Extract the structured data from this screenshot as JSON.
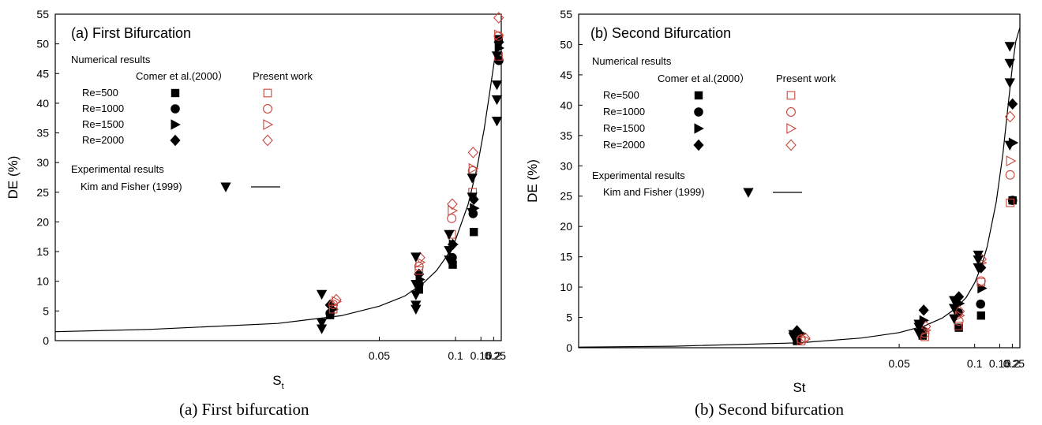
{
  "colors": {
    "black": "#000000",
    "red": "#c8463e"
  },
  "chart_data": [
    {
      "type": "scatter",
      "title": "(a) First Bifurcation",
      "caption": "(a) First bifurcation",
      "ylabel": "DE (%)",
      "xlabel_main": "S",
      "xlabel_sub": "t",
      "x_scale": "reciprocal",
      "xlim": [
        0.016,
        0.25
      ],
      "ylim": [
        0,
        55
      ],
      "x_ticks": [
        "0.05",
        "0.1",
        "0.15",
        "0.2",
        "0.25"
      ],
      "x_tick_values": [
        0.05,
        0.1,
        0.15,
        0.2,
        0.25
      ],
      "y_ticks": [
        0,
        5,
        10,
        15,
        20,
        25,
        30,
        35,
        40,
        45,
        50,
        55
      ],
      "legend": {
        "numerical_header": "Numerical results",
        "col_comer": "Comer et al.(2000）",
        "col_present": "Present work",
        "rows": [
          "Re=500",
          "Re=1000",
          "Re=1500",
          "Re=2000"
        ],
        "experimental_header": "Experimental results",
        "exp_label": "Kim and Fisher (1999)"
      },
      "curve": [
        [
          0.016,
          1.5
        ],
        [
          0.02,
          1.9
        ],
        [
          0.03,
          2.9
        ],
        [
          0.04,
          4.2
        ],
        [
          0.05,
          5.8
        ],
        [
          0.06,
          7.5
        ],
        [
          0.07,
          9.6
        ],
        [
          0.08,
          11.8
        ],
        [
          0.09,
          14.3
        ],
        [
          0.1,
          17.0
        ],
        [
          0.12,
          23.0
        ],
        [
          0.14,
          29.3
        ],
        [
          0.16,
          35.6
        ],
        [
          0.18,
          41.5
        ],
        [
          0.2,
          46.3
        ],
        [
          0.21,
          48.3
        ]
      ],
      "series": [
        {
          "name": "Re=500",
          "group": "Comer et al.(2000）",
          "marker": "square",
          "filled": true,
          "points": [
            [
              0.0378,
              4.3
            ],
            [
              0.0676,
              8.6
            ],
            [
              0.0965,
              12.8
            ],
            [
              0.1315,
              18.3
            ],
            [
              0.2306,
              50.8
            ]
          ]
        },
        {
          "name": "Re=1000",
          "group": "Comer et al.(2000）",
          "marker": "circle",
          "filled": true,
          "points": [
            [
              0.0378,
              4.6
            ],
            [
              0.0676,
              9.5
            ],
            [
              0.0959,
              14.0
            ],
            [
              0.13,
              21.4
            ],
            [
              0.2318,
              47.2
            ]
          ]
        },
        {
          "name": "Re=1500",
          "group": "Comer et al.(2000）",
          "marker": "triangle-right",
          "filled": true,
          "points": [
            [
              0.0384,
              5.3
            ],
            [
              0.0682,
              10.3
            ],
            [
              0.0971,
              16.2
            ],
            [
              0.1324,
              22.3
            ],
            [
              0.2331,
              49.3
            ]
          ]
        },
        {
          "name": "Re=2000",
          "group": "Comer et al.(2000）",
          "marker": "diamond",
          "filled": true,
          "points": [
            [
              0.0378,
              6.0
            ],
            [
              0.0676,
              11.2
            ],
            [
              0.0965,
              16.2
            ],
            [
              0.1315,
              23.8
            ],
            [
              0.2318,
              50.3
            ]
          ]
        },
        {
          "name": "Re=500",
          "group": "Present work",
          "marker": "square",
          "filled": false,
          "points": [
            [
              0.0384,
              5.3
            ],
            [
              0.0676,
              11.8
            ],
            [
              0.0952,
              17.9
            ],
            [
              0.1288,
              25.0
            ],
            [
              0.2293,
              47.9
            ]
          ]
        },
        {
          "name": "Re=1000",
          "group": "Present work",
          "marker": "circle",
          "filled": false,
          "points": [
            [
              0.0384,
              6.1
            ],
            [
              0.0676,
              12.5
            ],
            [
              0.0952,
              20.6
            ],
            [
              0.1288,
              28.6
            ],
            [
              0.2293,
              51.3
            ]
          ]
        },
        {
          "name": "Re=1500",
          "group": "Present work",
          "marker": "triangle-right",
          "filled": false,
          "points": [
            [
              0.039,
              6.6
            ],
            [
              0.0682,
              13.2
            ],
            [
              0.0959,
              21.9
            ],
            [
              0.13,
              29.0
            ],
            [
              0.2306,
              51.5
            ]
          ]
        },
        {
          "name": "Re=2000",
          "group": "Present work",
          "marker": "diamond",
          "filled": false,
          "points": [
            [
              0.039,
              6.9
            ],
            [
              0.0682,
              14.0
            ],
            [
              0.0959,
              23.0
            ],
            [
              0.13,
              31.7
            ],
            [
              0.2306,
              54.4
            ]
          ]
        },
        {
          "name": "Kim and Fisher (1999)",
          "group": "Experimental results",
          "marker": "triangle-down",
          "filled": true,
          "points": [
            [
              0.0363,
              2.0
            ],
            [
              0.0363,
              3.0
            ],
            [
              0.0363,
              7.8
            ],
            [
              0.0658,
              5.3
            ],
            [
              0.0658,
              6.0
            ],
            [
              0.0658,
              7.7
            ],
            [
              0.0658,
              9.5
            ],
            [
              0.0658,
              14.1
            ],
            [
              0.0923,
              13.6
            ],
            [
              0.0923,
              15.2
            ],
            [
              0.0923,
              17.9
            ],
            [
              0.128,
              21.6
            ],
            [
              0.128,
              24.2
            ],
            [
              0.128,
              27.4
            ],
            [
              0.2189,
              37.0
            ],
            [
              0.2189,
              40.6
            ],
            [
              0.2189,
              43.1
            ],
            [
              0.2189,
              48.0
            ]
          ]
        }
      ]
    },
    {
      "type": "scatter",
      "title": "(b) Second Bifurcation",
      "caption": "(b) Second bifurcation",
      "ylabel": "DE (%)",
      "xlabel_main": "St",
      "xlabel_sub": "",
      "x_scale": "reciprocal",
      "xlim": [
        0.016,
        0.25
      ],
      "ylim": [
        0,
        55
      ],
      "x_ticks": [
        "0.05",
        "0.1",
        "0.15",
        "0.2",
        "0.25"
      ],
      "x_tick_values": [
        0.05,
        0.1,
        0.15,
        0.2,
        0.25
      ],
      "y_ticks": [
        0,
        5,
        10,
        15,
        20,
        25,
        30,
        35,
        40,
        45,
        50,
        55
      ],
      "legend": {
        "numerical_header": "Numerical results",
        "col_comer": "Comer et al.(2000）",
        "col_present": "Present work",
        "rows": [
          "Re=500",
          "Re=1000",
          "Re=1500",
          "Re=2000"
        ],
        "experimental_header": "Experimental results",
        "exp_label": "Kim and Fisher (1999)"
      },
      "curve": [
        [
          0.016,
          0.1
        ],
        [
          0.02,
          0.25
        ],
        [
          0.03,
          0.8
        ],
        [
          0.04,
          1.6
        ],
        [
          0.05,
          2.5
        ],
        [
          0.06,
          3.6
        ],
        [
          0.07,
          4.9
        ],
        [
          0.08,
          6.5
        ],
        [
          0.09,
          8.3
        ],
        [
          0.1,
          10.7
        ],
        [
          0.11,
          13.5
        ],
        [
          0.12,
          16.7
        ],
        [
          0.14,
          24.0
        ],
        [
          0.16,
          32.0
        ],
        [
          0.18,
          40.0
        ],
        [
          0.2,
          46.3
        ],
        [
          0.22,
          50.5
        ],
        [
          0.25,
          52.8
        ]
      ],
      "series": [
        {
          "name": "Re=500",
          "group": "Comer et al.(2000）",
          "marker": "square",
          "filled": true,
          "points": [
            [
              0.0298,
              1.1
            ],
            [
              0.0592,
              2.0
            ],
            [
              0.0827,
              3.3
            ],
            [
              0.1093,
              5.3
            ],
            [
              0.201,
              24.3
            ]
          ]
        },
        {
          "name": "Re=1000",
          "group": "Comer et al.(2000）",
          "marker": "circle",
          "filled": true,
          "points": [
            [
              0.0298,
              1.8
            ],
            [
              0.0592,
              2.8
            ],
            [
              0.0822,
              5.8
            ],
            [
              0.1086,
              7.2
            ],
            [
              0.201,
              24.3
            ]
          ]
        },
        {
          "name": "Re=1500",
          "group": "Comer et al.(2000）",
          "marker": "triangle-right",
          "filled": true,
          "points": [
            [
              0.0303,
              2.3
            ],
            [
              0.0597,
              4.5
            ],
            [
              0.0833,
              7.3
            ],
            [
              0.1106,
              9.8
            ],
            [
              0.204,
              33.8
            ]
          ]
        },
        {
          "name": "Re=2000",
          "group": "Comer et al.(2000）",
          "marker": "diamond",
          "filled": true,
          "points": [
            [
              0.0298,
              2.8
            ],
            [
              0.0597,
              6.2
            ],
            [
              0.0827,
              8.4
            ],
            [
              0.1093,
              13.2
            ],
            [
              0.201,
              40.2
            ]
          ]
        },
        {
          "name": "Re=500",
          "group": "Present work",
          "marker": "square",
          "filled": false,
          "points": [
            [
              0.0303,
              1.1
            ],
            [
              0.0602,
              1.8
            ],
            [
              0.0822,
              3.6
            ],
            [
              0.1093,
              10.8
            ],
            [
              0.1889,
              23.9
            ]
          ]
        },
        {
          "name": "Re=1000",
          "group": "Present work",
          "marker": "circle",
          "filled": false,
          "points": [
            [
              0.0303,
              1.4
            ],
            [
              0.0602,
              2.4
            ],
            [
              0.0827,
              4.4
            ],
            [
              0.1093,
              11.0
            ],
            [
              0.1889,
              28.5
            ]
          ]
        },
        {
          "name": "Re=1500",
          "group": "Present work",
          "marker": "triangle-right",
          "filled": false,
          "points": [
            [
              0.0308,
              1.4
            ],
            [
              0.0607,
              2.9
            ],
            [
              0.0833,
              5.3
            ],
            [
              0.11,
              14.0
            ],
            [
              0.1913,
              30.8
            ]
          ]
        },
        {
          "name": "Re=2000",
          "group": "Present work",
          "marker": "diamond",
          "filled": false,
          "points": [
            [
              0.0308,
              1.6
            ],
            [
              0.0607,
              3.5
            ],
            [
              0.0833,
              6.0
            ],
            [
              0.11,
              14.6
            ],
            [
              0.1889,
              38.1
            ]
          ]
        },
        {
          "name": "Kim and Fisher (1999)",
          "group": "Experimental results",
          "marker": "triangle-down",
          "filled": true,
          "points": [
            [
              0.0294,
              1.8
            ],
            [
              0.0294,
              2.2
            ],
            [
              0.0575,
              2.4
            ],
            [
              0.0575,
              3.4
            ],
            [
              0.0575,
              3.9
            ],
            [
              0.0786,
              4.8
            ],
            [
              0.0786,
              6.5
            ],
            [
              0.0786,
              7.8
            ],
            [
              0.105,
              13.2
            ],
            [
              0.105,
              14.5
            ],
            [
              0.105,
              15.3
            ],
            [
              0.1875,
              33.4
            ],
            [
              0.1875,
              43.7
            ],
            [
              0.1875,
              46.9
            ],
            [
              0.1875,
              49.7
            ]
          ]
        }
      ]
    }
  ]
}
